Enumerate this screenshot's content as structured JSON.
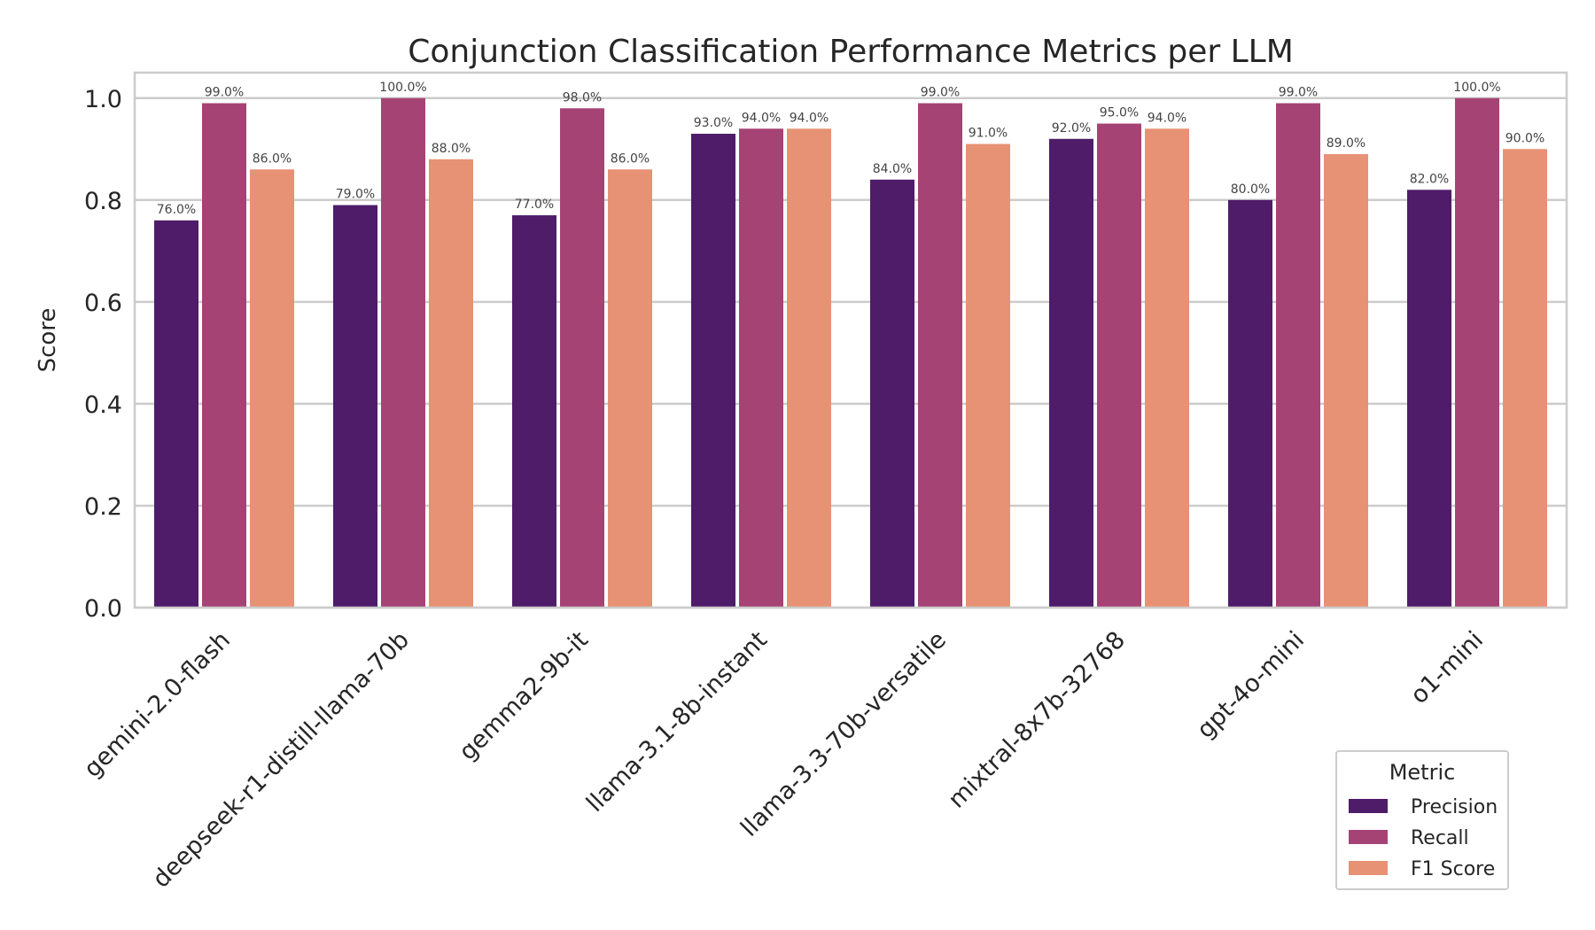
{
  "chart_data": {
    "type": "bar",
    "title": "Conjunction Classification Performance Metrics per LLM",
    "xlabel": "",
    "ylabel": "Score",
    "ylim": [
      0,
      1.05
    ],
    "yticks": [
      "0.0",
      "0.2",
      "0.4",
      "0.6",
      "0.8",
      "1.0"
    ],
    "ytick_values": [
      0,
      0.2,
      0.4,
      0.6,
      0.8,
      1.0
    ],
    "grid": true,
    "legend": {
      "title": "Metric",
      "placement": "bottom-right"
    },
    "categories": [
      "gemini-2.0-flash",
      "deepseek-r1-distill-llama-70b",
      "gemma2-9b-it",
      "llama-3.1-8b-instant",
      "llama-3.3-70b-versatile",
      "mixtral-8x7b-32768",
      "gpt-4o-mini",
      "o1-mini"
    ],
    "series": [
      {
        "name": "Precision",
        "color": "#4e1c69",
        "values": [
          0.76,
          0.79,
          0.77,
          0.93,
          0.84,
          0.92,
          0.8,
          0.82
        ],
        "labels": [
          "76.0%",
          "79.0%",
          "77.0%",
          "93.0%",
          "84.0%",
          "92.0%",
          "80.0%",
          "82.0%"
        ]
      },
      {
        "name": "Recall",
        "color": "#a64375",
        "values": [
          0.99,
          1.0,
          0.98,
          0.94,
          0.99,
          0.95,
          0.99,
          1.0
        ],
        "labels": [
          "99.0%",
          "100.0%",
          "98.0%",
          "94.0%",
          "99.0%",
          "95.0%",
          "99.0%",
          "100.0%"
        ]
      },
      {
        "name": "F1 Score",
        "color": "#e79275",
        "values": [
          0.86,
          0.88,
          0.86,
          0.94,
          0.91,
          0.94,
          0.89,
          0.9
        ],
        "labels": [
          "86.0%",
          "88.0%",
          "86.0%",
          "94.0%",
          "91.0%",
          "94.0%",
          "89.0%",
          "90.0%"
        ]
      }
    ]
  }
}
